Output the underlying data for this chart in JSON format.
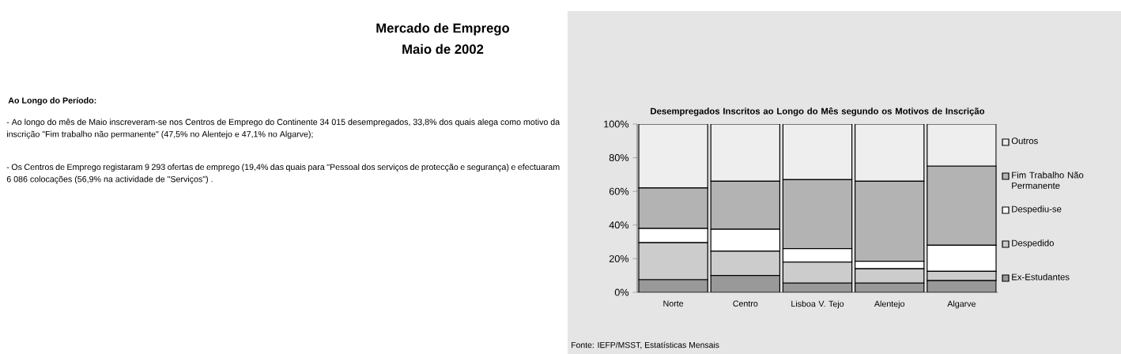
{
  "chart_data": {
    "type": "bar",
    "stacked": true,
    "title": "Desempregados Inscritos ao Longo do Mês segundo os Motivos de Inscrição",
    "categories": [
      "Norte",
      "Centro",
      "Lisboa V. Tejo",
      "Alentejo",
      "Algarve"
    ],
    "series": [
      {
        "name": "Ex-Estudantes",
        "color": "#999999",
        "values": [
          7.5,
          10,
          5.5,
          5.5,
          7
        ]
      },
      {
        "name": "Despedido",
        "color": "#cccccc",
        "values": [
          22,
          14.5,
          12.5,
          8.5,
          5.5
        ]
      },
      {
        "name": "Despediu-se",
        "color": "#ffffff",
        "values": [
          8.5,
          13,
          8,
          4.5,
          15.5
        ]
      },
      {
        "name": "Fim Trabalho Não Permanente",
        "color": "#b3b3b3",
        "values": [
          24,
          28.5,
          41,
          47.5,
          47
        ]
      },
      {
        "name": "Outros",
        "color": "#eeeeee",
        "values": [
          38,
          34,
          33,
          34,
          25
        ]
      }
    ],
    "ylim": [
      0,
      100
    ],
    "yticks": [
      {
        "value": 0,
        "label": "0%"
      },
      {
        "value": 20,
        "label": "20%"
      },
      {
        "value": 40,
        "label": "40%"
      },
      {
        "value": 60,
        "label": "60%"
      },
      {
        "value": 80,
        "label": "80%"
      },
      {
        "value": 100,
        "label": "100%"
      }
    ],
    "legend": "right",
    "annotations": [
      "Mercado de Emprego",
      "Maio de 2002",
      "Ao Longo do Período:",
      "- Ao longo do mês de Maio inscreveram-se nos Centros de Emprego do Continente 34 015 desempregados, 33,8% dos quais alega como motivo da inscrição \"Fim trabalho não permanente\" (47,5% no Alentejo e 47,1% no Algarve);",
      "- Os Centros de Emprego registaram 9 293 ofertas de emprego (19,4% das quais para \"Pessoal dos serviços de protecção e segurança) e efectuaram 6 086 colocações (56,9% na actividade de \"Serviços\") .",
      "Fonte: IEFP/MSST, Estatísticas Mensais"
    ]
  }
}
